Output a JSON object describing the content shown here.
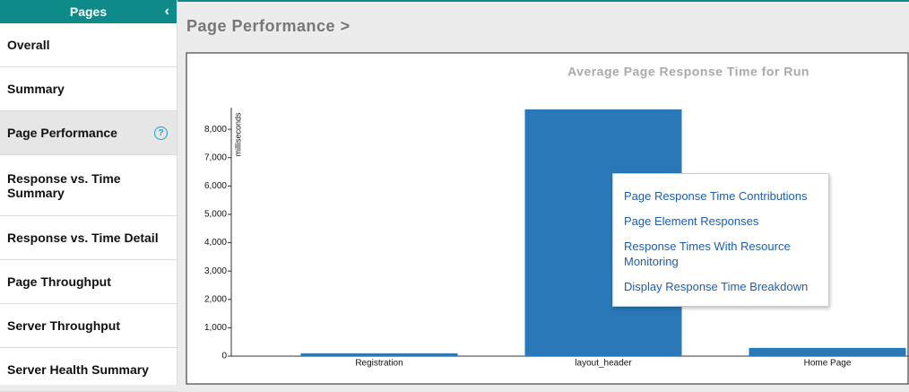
{
  "sidebar": {
    "title": "Pages",
    "items": [
      {
        "label": "Overall"
      },
      {
        "label": "Summary"
      },
      {
        "label": "Page Performance",
        "selected": true
      },
      {
        "label": "Response vs. Time Summary"
      },
      {
        "label": "Response vs. Time Detail"
      },
      {
        "label": "Page Throughput"
      },
      {
        "label": "Server Throughput"
      },
      {
        "label": "Server Health Summary"
      }
    ]
  },
  "header": {
    "title": "Page Performance >"
  },
  "chart_data": {
    "type": "bar",
    "title": "Average Page Response Time for Run",
    "y_label": "milliseconds",
    "categories": [
      "Registration",
      "layout_header",
      "Home Page"
    ],
    "values": [
      100,
      8700,
      290
    ],
    "color": "#2a78b8",
    "ylim": [
      0,
      8700
    ],
    "yticks": [
      0,
      {
        "value": 1000,
        "label": "1,000"
      },
      {
        "value": 2000,
        "label": "2,000"
      },
      {
        "value": 3000,
        "label": "3,000"
      },
      {
        "value": 4000,
        "label": "4,000"
      },
      {
        "value": 5000,
        "label": "5,000"
      },
      {
        "value": 6000,
        "label": "6,000"
      },
      {
        "value": 7000,
        "label": "7,000"
      },
      {
        "value": 8000,
        "label": "8,000"
      }
    ]
  },
  "context_menu": {
    "items": [
      "Page Response Time Contributions",
      "Page Element Responses",
      "Response Times With Resource Monitoring",
      "Display Response Time Breakdown"
    ]
  }
}
